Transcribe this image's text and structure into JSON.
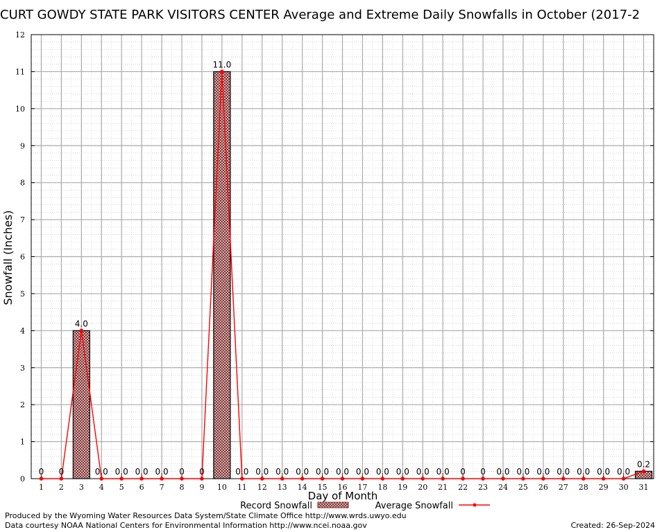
{
  "chart_data": {
    "type": "bar",
    "title": "CURT GOWDY STATE PARK VISITORS CENTER Average and Extreme Daily Snowfalls in October (2017-2",
    "xlabel": "Day of Month",
    "ylabel": "Snowfall (Inches)",
    "ylim": [
      0,
      12
    ],
    "yticks": [
      0,
      1,
      2,
      3,
      4,
      5,
      6,
      7,
      8,
      9,
      10,
      11,
      12
    ],
    "categories": [
      "1",
      "2",
      "3",
      "4",
      "5",
      "6",
      "7",
      "8",
      "9",
      "10",
      "11",
      "12",
      "13",
      "14",
      "15",
      "16",
      "17",
      "18",
      "19",
      "20",
      "21",
      "22",
      "23",
      "24",
      "25",
      "26",
      "27",
      "28",
      "29",
      "30",
      "31"
    ],
    "grid": true,
    "legend_position": "bottom",
    "series": [
      {
        "name": "Record Snowfall",
        "kind": "bar",
        "color": "#8b2a2a",
        "values": [
          0,
          0,
          4.0,
          0,
          0,
          0,
          0,
          0,
          0,
          11.0,
          0,
          0,
          0,
          0,
          0,
          0,
          0,
          0,
          0,
          0,
          0,
          0,
          0,
          0,
          0,
          0,
          0,
          0,
          0,
          0,
          0.2
        ],
        "labels": [
          "0",
          "0",
          "4.0",
          "0.0",
          "0.0",
          "0.0",
          "0.0",
          "0",
          "0",
          "11.0",
          "0.0",
          "0.0",
          "0.0",
          "0.0",
          "0.0",
          "0.0",
          "0.0",
          "0.0",
          "0.0",
          "0.0",
          "0.0",
          "0",
          "0",
          "0.0",
          "0.0",
          "0.0",
          "0.0",
          "0.0",
          "0.0",
          "0.0",
          "0.2"
        ]
      },
      {
        "name": "Average Snowfall",
        "kind": "line",
        "color": "#ff0000",
        "values": [
          0,
          0,
          4.0,
          0,
          0,
          0,
          0,
          0,
          0,
          11.0,
          0,
          0,
          0,
          0,
          0,
          0,
          0,
          0,
          0,
          0,
          0,
          0,
          0,
          0,
          0,
          0,
          0,
          0,
          0,
          0,
          0.2
        ]
      }
    ]
  },
  "footer": {
    "produced_by": "Produced by the Wyoming Water Resources Data System/State Climate Office http://www.wrds.uwyo.edu",
    "courtesy": "Data courtesy NOAA National Centers for Environmental Information http://www.ncei.noaa.gov",
    "created": "Created: 26-Sep-2024"
  }
}
